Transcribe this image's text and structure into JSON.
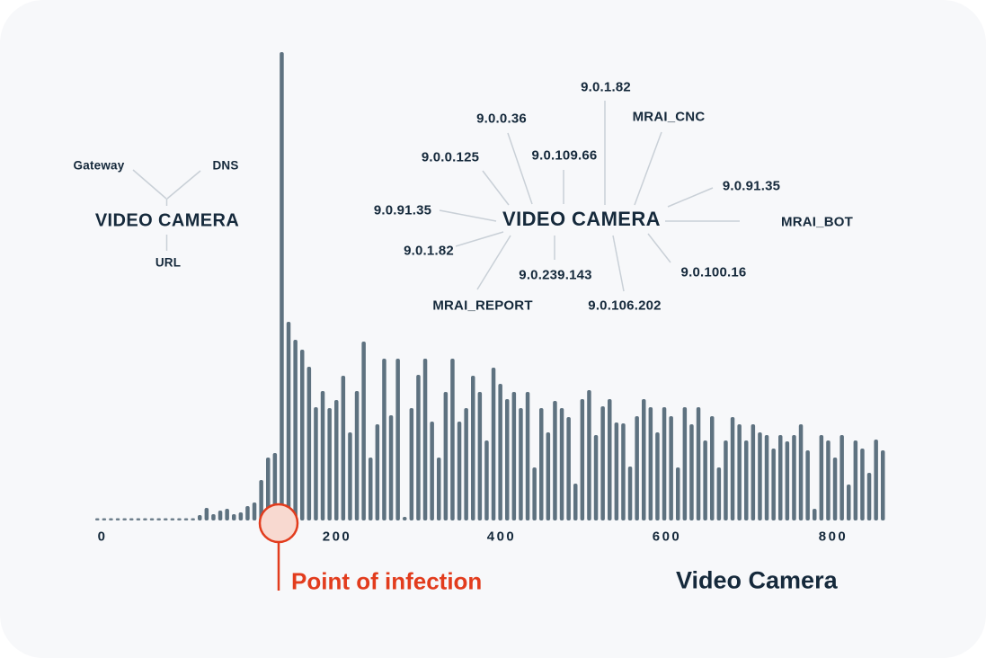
{
  "colors": {
    "navy": "#15293b",
    "bar": "#5e7280",
    "dot": "#6e7f8c",
    "line": "#c9d0d7",
    "accent_red": "#e23c1d",
    "circle_fill": "#f8d9d0",
    "card_bg": "#f7f8fa",
    "page_bg": "#ffffff"
  },
  "device_map": {
    "title": "VIDEO CAMERA",
    "nodes": [
      {
        "label": "Gateway"
      },
      {
        "label": "DNS"
      },
      {
        "label": "URL"
      }
    ]
  },
  "threat_map": {
    "title": "VIDEO CAMERA",
    "nodes": [
      {
        "label": "9.0.1.82"
      },
      {
        "label": "MRAI_CNC"
      },
      {
        "label": "9.0.0.36"
      },
      {
        "label": "9.0.109.66"
      },
      {
        "label": "9.0.0.125"
      },
      {
        "label": "9.0.91.35"
      },
      {
        "label": "9.0.1.82"
      },
      {
        "label": "9.0.239.143"
      },
      {
        "label": "MRAI_REPORT"
      },
      {
        "label": "9.0.106.202"
      },
      {
        "label": "9.0.91.35"
      },
      {
        "label": "MRAI_BOT"
      },
      {
        "label": "9.0.100.16"
      }
    ]
  },
  "annotations": {
    "point_of_infection": "Point of infection",
    "device_label": "Video Camera"
  },
  "chart_data": {
    "type": "bar",
    "title": "",
    "xlabel": "",
    "ylabel": "",
    "x_tick_labels": [
      "0",
      "200",
      "400",
      "600",
      "800"
    ],
    "legend": "none",
    "grid": false,
    "note": "heights are in screen pixels; no y-axis scale is shown in the source image",
    "baseline_dots_count": 15,
    "pre_infection_bar_heights": [
      6,
      14,
      7,
      11,
      13,
      7,
      9,
      16,
      20,
      45,
      70,
      75
    ],
    "spike_height": 521,
    "post_infection_bar_heights": [
      221,
      201,
      190,
      171,
      126,
      144,
      125,
      134,
      161,
      98,
      144,
      199,
      70,
      107,
      180,
      117,
      180,
      4,
      125,
      162,
      180,
      110,
      70,
      143,
      180,
      110,
      125,
      161,
      143,
      89,
      170,
      152,
      135,
      143,
      125,
      143,
      59,
      125,
      98,
      133,
      125,
      115,
      41,
      135,
      145,
      95,
      127,
      135,
      109,
      108,
      60,
      116,
      135,
      126,
      98,
      126,
      116,
      59,
      126,
      107,
      126,
      89,
      116,
      59,
      89,
      115,
      107,
      89,
      107,
      98,
      95,
      80,
      95,
      88,
      95,
      107,
      78,
      13,
      95,
      89,
      70,
      95,
      40,
      89,
      80,
      53,
      90,
      78
    ]
  }
}
